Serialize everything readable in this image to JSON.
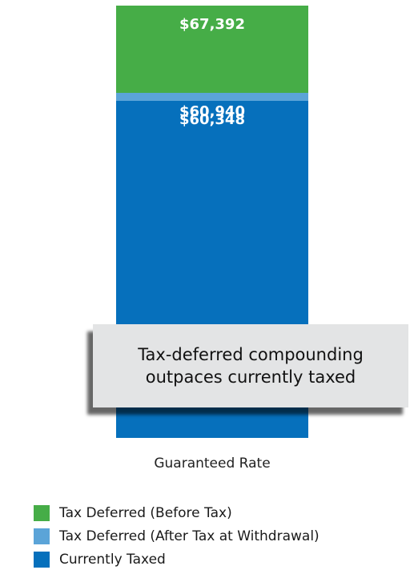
{
  "chart_data": {
    "type": "bar",
    "stacked": false,
    "overlapping": true,
    "categories": [
      "Guaranteed Rate"
    ],
    "series": [
      {
        "name": "Tax Deferred (Before Tax)",
        "values": [
          67392
        ],
        "label": "$67,392",
        "color": "#46ad47"
      },
      {
        "name": "Tax Deferred (After Tax at Withdrawal)",
        "values": [
          60940
        ],
        "label": "$60,940",
        "color": "#5ba4d8"
      },
      {
        "name": "Currently Taxed",
        "values": [
          60348
        ],
        "label": "$60,348",
        "color": "#0670bc"
      }
    ],
    "annotation": "Tax-deferred compounding outpaces currently taxed",
    "legend_position": "bottom-left",
    "grid": false
  }
}
